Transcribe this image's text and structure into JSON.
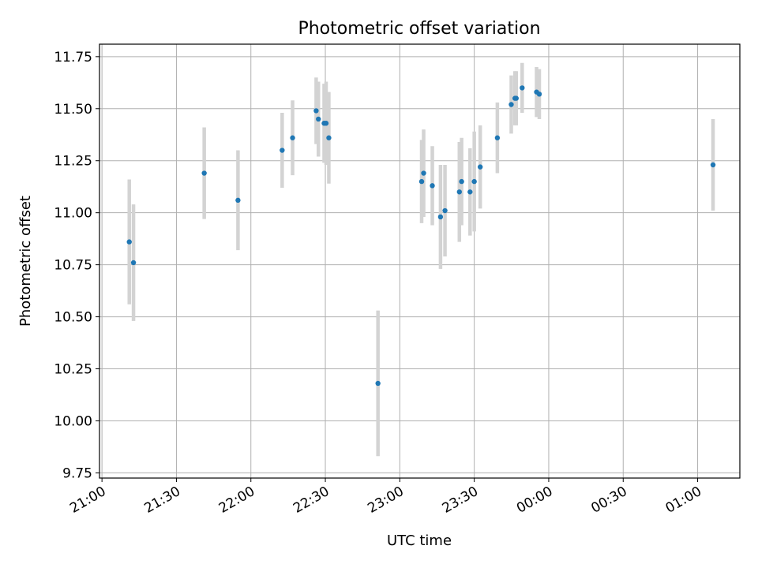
{
  "chart_data": {
    "type": "scatter",
    "title": "Photometric offset variation",
    "xlabel": "UTC time",
    "ylabel": "Photometric offset",
    "x_ticks": [
      {
        "t": 0,
        "label": "21:00"
      },
      {
        "t": 30,
        "label": "21:30"
      },
      {
        "t": 60,
        "label": "22:00"
      },
      {
        "t": 90,
        "label": "22:30"
      },
      {
        "t": 120,
        "label": "23:00"
      },
      {
        "t": 150,
        "label": "23:30"
      },
      {
        "t": 180,
        "label": "00:00"
      },
      {
        "t": 210,
        "label": "00:30"
      },
      {
        "t": 240,
        "label": "01:00"
      }
    ],
    "y_ticks": [
      9.75,
      10.0,
      10.25,
      10.5,
      10.75,
      11.0,
      11.25,
      11.5,
      11.75
    ],
    "xlim": [
      -1,
      257
    ],
    "ylim": [
      9.725,
      11.81
    ],
    "grid": true,
    "colors": {
      "point": "#1f77b4",
      "errorbar": "#d3d3d3",
      "grid": "#b0b0b0"
    },
    "points": [
      {
        "time": "21:11",
        "t": 11.0,
        "y": 10.86,
        "err": 0.3
      },
      {
        "time": "21:13",
        "t": 12.7,
        "y": 10.76,
        "err": 0.28
      },
      {
        "time": "21:41",
        "t": 41.2,
        "y": 11.19,
        "err": 0.22
      },
      {
        "time": "21:55",
        "t": 54.8,
        "y": 11.06,
        "err": 0.24
      },
      {
        "time": "22:12",
        "t": 72.6,
        "y": 11.3,
        "err": 0.18
      },
      {
        "time": "22:17",
        "t": 76.8,
        "y": 11.36,
        "err": 0.18
      },
      {
        "time": "22:26",
        "t": 86.3,
        "y": 11.49,
        "err": 0.16
      },
      {
        "time": "22:27",
        "t": 87.2,
        "y": 11.45,
        "err": 0.18
      },
      {
        "time": "22:29",
        "t": 89.5,
        "y": 11.43,
        "err": 0.19
      },
      {
        "time": "22:30",
        "t": 90.3,
        "y": 11.43,
        "err": 0.2
      },
      {
        "time": "22:31",
        "t": 91.4,
        "y": 11.36,
        "err": 0.22
      },
      {
        "time": "22:51",
        "t": 111.2,
        "y": 10.18,
        "err": 0.35
      },
      {
        "time": "23:08",
        "t": 128.8,
        "y": 11.15,
        "err": 0.2
      },
      {
        "time": "23:09",
        "t": 129.6,
        "y": 11.19,
        "err": 0.21
      },
      {
        "time": "23:13",
        "t": 133.1,
        "y": 11.13,
        "err": 0.19
      },
      {
        "time": "23:16",
        "t": 136.4,
        "y": 10.98,
        "err": 0.25
      },
      {
        "time": "23:18",
        "t": 138.2,
        "y": 11.01,
        "err": 0.22
      },
      {
        "time": "23:24",
        "t": 144.0,
        "y": 11.1,
        "err": 0.24
      },
      {
        "time": "23:25",
        "t": 144.9,
        "y": 11.15,
        "err": 0.21
      },
      {
        "time": "23:28",
        "t": 148.3,
        "y": 11.1,
        "err": 0.21
      },
      {
        "time": "23:30",
        "t": 150.0,
        "y": 11.15,
        "err": 0.24
      },
      {
        "time": "23:32",
        "t": 152.4,
        "y": 11.22,
        "err": 0.2
      },
      {
        "time": "23:39",
        "t": 159.3,
        "y": 11.36,
        "err": 0.17
      },
      {
        "time": "23:45",
        "t": 164.9,
        "y": 11.52,
        "err": 0.14
      },
      {
        "time": "23:46",
        "t": 166.4,
        "y": 11.55,
        "err": 0.13
      },
      {
        "time": "23:47",
        "t": 166.9,
        "y": 11.55,
        "err": 0.13
      },
      {
        "time": "23:49",
        "t": 169.3,
        "y": 11.6,
        "err": 0.12
      },
      {
        "time": "23:55",
        "t": 175.1,
        "y": 11.58,
        "err": 0.12
      },
      {
        "time": "23:56",
        "t": 176.2,
        "y": 11.57,
        "err": 0.12
      },
      {
        "time": "01:06",
        "t": 246.2,
        "y": 11.23,
        "err": 0.22
      }
    ]
  }
}
